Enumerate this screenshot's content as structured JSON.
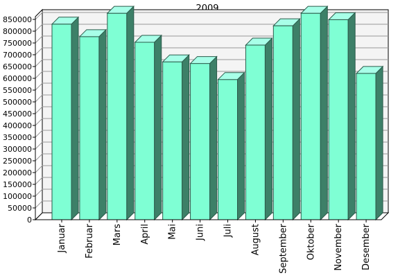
{
  "chart_data": {
    "type": "bar",
    "title": "2009",
    "xlabel": "",
    "ylabel": "",
    "categories": [
      "Januar",
      "Februar",
      "Mars",
      "April",
      "Mai",
      "Juni",
      "Juli",
      "August",
      "September",
      "Oktober",
      "November",
      "Desember"
    ],
    "values": [
      830000,
      777000,
      876000,
      753000,
      670000,
      663000,
      595000,
      741000,
      823000,
      876000,
      849000,
      621000
    ],
    "ylim": [
      0,
      850000
    ],
    "yticks": [
      "0",
      "50000",
      "100000",
      "150000",
      "200000",
      "250000",
      "300000",
      "350000",
      "400000",
      "450000",
      "500000",
      "550000",
      "600000",
      "650000",
      "700000",
      "750000",
      "800000",
      "850000"
    ],
    "grid": true,
    "legend": "none",
    "colors": {
      "bar_front": "#7fffd4",
      "bar_side": "#3d8068",
      "bar_top": "#a8ffe8",
      "grid": "#999999",
      "wall": "#f4f4f4",
      "axis": "#000000"
    }
  }
}
